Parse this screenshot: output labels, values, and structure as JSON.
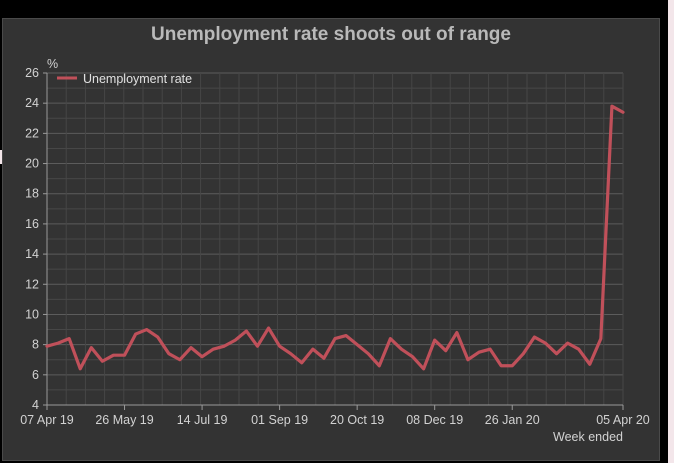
{
  "chart_data": {
    "type": "line",
    "title": "Unemployment rate shoots out of range",
    "ylabel": "%",
    "xlabel": "Week ended",
    "ylim": [
      4,
      26
    ],
    "yticks": [
      4,
      6,
      8,
      10,
      12,
      14,
      16,
      18,
      20,
      22,
      24,
      26
    ],
    "xtick_labels": [
      "07 Apr 19",
      "26 May 19",
      "14 Jul 19",
      "01 Sep 19",
      "20 Oct 19",
      "08 Dec 19",
      "26 Jan 20",
      "05 Apr 20"
    ],
    "xtick_indices": [
      0,
      7,
      14,
      21,
      28,
      35,
      42,
      52
    ],
    "grid": true,
    "legend": "top-left",
    "series": [
      {
        "name": "Unemployment rate",
        "color": "#c0505a",
        "values": [
          7.9,
          8.1,
          8.4,
          6.4,
          7.8,
          6.9,
          7.3,
          7.3,
          8.7,
          9.0,
          8.5,
          7.4,
          7.0,
          7.8,
          7.2,
          7.7,
          7.9,
          8.3,
          8.9,
          7.9,
          9.1,
          7.9,
          7.4,
          6.8,
          7.7,
          7.1,
          8.4,
          8.6,
          8.0,
          7.4,
          6.6,
          8.4,
          7.7,
          7.2,
          6.4,
          8.3,
          7.6,
          8.8,
          7.0,
          7.5,
          7.7,
          6.6,
          6.6,
          7.4,
          8.5,
          8.1,
          7.4,
          8.1,
          7.7,
          6.7,
          8.4,
          23.8,
          23.4
        ]
      }
    ]
  }
}
